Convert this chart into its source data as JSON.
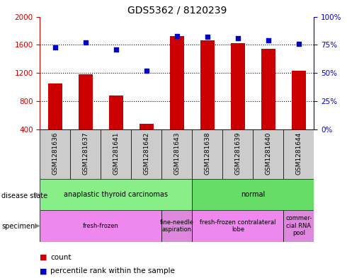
{
  "title": "GDS5362 / 8120239",
  "samples": [
    "GSM1281636",
    "GSM1281637",
    "GSM1281641",
    "GSM1281642",
    "GSM1281643",
    "GSM1281638",
    "GSM1281639",
    "GSM1281640",
    "GSM1281644"
  ],
  "counts": [
    1050,
    1180,
    880,
    480,
    1720,
    1660,
    1620,
    1540,
    1230
  ],
  "percentiles": [
    73,
    77,
    71,
    52,
    83,
    82,
    81,
    79,
    76
  ],
  "ylim_left": [
    400,
    2000
  ],
  "ylim_right": [
    0,
    100
  ],
  "yticks_left": [
    400,
    800,
    1200,
    1600,
    2000
  ],
  "yticks_right": [
    0,
    25,
    50,
    75,
    100
  ],
  "bar_color": "#cc0000",
  "dot_color": "#0000cc",
  "disease_state_groups": [
    {
      "label": "anaplastic thyroid carcinomas",
      "start": 0,
      "end": 5,
      "color": "#88ee88"
    },
    {
      "label": "normal",
      "start": 5,
      "end": 9,
      "color": "#66dd66"
    }
  ],
  "specimen_groups": [
    {
      "label": "fresh-frozen",
      "start": 0,
      "end": 4,
      "color": "#ee88ee"
    },
    {
      "label": "fine-needle\naspiration",
      "start": 4,
      "end": 5,
      "color": "#dd88dd"
    },
    {
      "label": "fresh-frozen contralateral\nlobe",
      "start": 5,
      "end": 8,
      "color": "#ee88ee"
    },
    {
      "label": "commer-\ncial RNA\npool",
      "start": 8,
      "end": 9,
      "color": "#dd88dd"
    }
  ],
  "sample_box_color": "#cccccc",
  "legend_count_color": "#cc0000",
  "legend_percentile_color": "#0000cc"
}
